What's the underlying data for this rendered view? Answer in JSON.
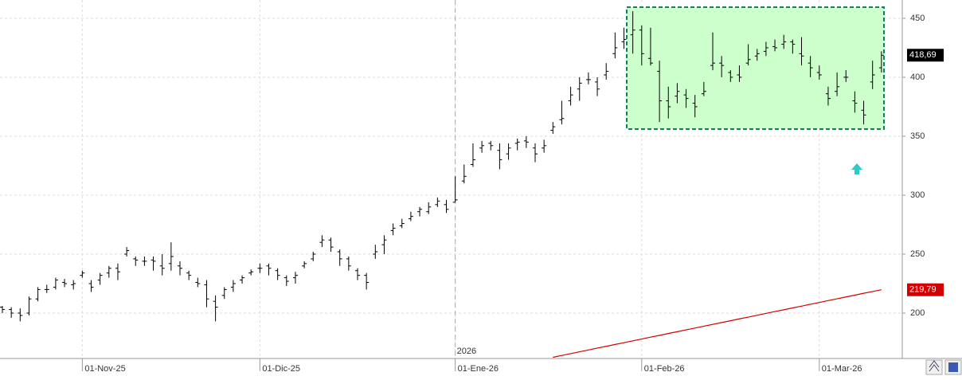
{
  "chart_data": {
    "type": "ohlc",
    "categories": [
      null,
      null,
      null,
      null,
      null,
      null,
      null,
      null,
      null,
      "01-Nov-25",
      null,
      null,
      null,
      null,
      null,
      null,
      null,
      null,
      null,
      null,
      null,
      null,
      null,
      null,
      null,
      null,
      null,
      null,
      null,
      "01-Dic-25",
      null,
      null,
      null,
      null,
      null,
      null,
      null,
      null,
      null,
      null,
      null,
      null,
      null,
      null,
      null,
      null,
      null,
      null,
      null,
      null,
      null,
      "01-Ene-26",
      null,
      null,
      null,
      null,
      null,
      null,
      null,
      null,
      null,
      null,
      null,
      null,
      null,
      null,
      null,
      null,
      null,
      null,
      null,
      null,
      "01-Feb-26",
      null,
      null,
      null,
      null,
      null,
      null,
      null,
      null,
      null,
      null,
      null,
      null,
      null,
      null,
      null,
      null,
      null,
      null,
      null,
      "01-Mar-26",
      null,
      null,
      null,
      null,
      null,
      null,
      null
    ],
    "open": [
      205,
      203,
      200,
      200,
      212,
      220,
      222,
      226,
      224,
      232,
      225,
      228,
      234,
      238,
      250,
      246,
      244,
      245,
      240,
      242,
      240,
      234,
      226,
      224,
      210,
      215,
      222,
      228,
      234,
      238,
      240,
      236,
      230,
      230,
      240,
      246,
      260,
      262,
      252,
      246,
      236,
      232,
      250,
      258,
      270,
      274,
      280,
      286,
      286,
      292,
      292,
      294,
      312,
      326,
      340,
      344,
      338,
      335,
      344,
      346,
      340,
      340,
      355,
      364,
      380,
      390,
      398,
      396,
      402,
      420,
      430,
      436,
      440,
      416,
      405,
      380,
      384,
      385,
      378,
      386,
      410,
      412,
      404,
      402,
      412,
      418,
      422,
      426,
      428,
      430,
      420,
      412,
      404,
      386,
      388,
      400,
      380,
      372,
      396,
      408
    ],
    "high": [
      206,
      205,
      204,
      214,
      222,
      224,
      230,
      229,
      228,
      236,
      228,
      234,
      240,
      242,
      256,
      248,
      248,
      248,
      250,
      260,
      244,
      236,
      230,
      228,
      215,
      222,
      228,
      232,
      237,
      242,
      242,
      238,
      232,
      235,
      244,
      252,
      266,
      264,
      254,
      248,
      238,
      234,
      258,
      266,
      276,
      280,
      286,
      290,
      294,
      298,
      296,
      316,
      326,
      344,
      346,
      346,
      344,
      344,
      348,
      350,
      344,
      347,
      362,
      380,
      392,
      400,
      404,
      400,
      412,
      438,
      442,
      456,
      444,
      442,
      414,
      392,
      395,
      390,
      385,
      396,
      438,
      418,
      406,
      410,
      428,
      424,
      430,
      432,
      436,
      432,
      434,
      418,
      410,
      392,
      404,
      406,
      388,
      380,
      414,
      422
    ],
    "low": [
      200,
      196,
      193,
      198,
      210,
      217,
      220,
      222,
      220,
      230,
      218,
      224,
      230,
      228,
      248,
      240,
      240,
      236,
      232,
      236,
      232,
      228,
      222,
      205,
      193,
      212,
      218,
      225,
      232,
      234,
      232,
      228,
      223,
      225,
      238,
      244,
      256,
      252,
      240,
      236,
      228,
      220,
      246,
      250,
      266,
      272,
      278,
      282,
      284,
      290,
      285,
      294,
      310,
      324,
      336,
      338,
      322,
      330,
      338,
      340,
      328,
      336,
      352,
      360,
      376,
      380,
      394,
      384,
      398,
      416,
      424,
      420,
      410,
      410,
      362,
      365,
      378,
      374,
      366,
      384,
      406,
      400,
      396,
      396,
      410,
      414,
      418,
      422,
      424,
      420,
      410,
      400,
      398,
      376,
      384,
      396,
      370,
      360,
      390,
      404
    ],
    "close": [
      203,
      200,
      198,
      212,
      220,
      220,
      228,
      225,
      225,
      234,
      222,
      232,
      238,
      235,
      253,
      245,
      244,
      244,
      238,
      248,
      238,
      232,
      225,
      212,
      205,
      220,
      225,
      230,
      235,
      238,
      238,
      232,
      227,
      232,
      242,
      250,
      262,
      256,
      246,
      240,
      232,
      226,
      252,
      262,
      272,
      276,
      282,
      288,
      290,
      295,
      288,
      296,
      316,
      330,
      342,
      342,
      330,
      340,
      345,
      345,
      335,
      342,
      358,
      365,
      385,
      395,
      398,
      390,
      405,
      425,
      432,
      440,
      420,
      412,
      380,
      375,
      388,
      382,
      375,
      388,
      412,
      410,
      400,
      400,
      415,
      420,
      425,
      425,
      430,
      428,
      418,
      408,
      402,
      382,
      392,
      400,
      378,
      368,
      402,
      418.69
    ],
    "close_label": "418,69",
    "color": "#000000",
    "overlays": [
      {
        "type": "line",
        "color": "#d40000",
        "last_label": "219,79",
        "values": [
          null,
          null,
          null,
          null,
          null,
          null,
          null,
          null,
          null,
          null,
          null,
          null,
          null,
          null,
          null,
          null,
          null,
          null,
          null,
          null,
          null,
          null,
          null,
          null,
          null,
          null,
          null,
          null,
          null,
          null,
          null,
          null,
          null,
          null,
          null,
          null,
          null,
          null,
          null,
          null,
          null,
          null,
          null,
          null,
          null,
          null,
          null,
          null,
          null,
          null,
          null,
          null,
          null,
          null,
          null,
          null,
          null,
          null,
          null,
          null,
          null,
          null,
          162.5,
          164.1,
          165.6,
          167.2,
          168.7,
          170.3,
          171.8,
          173.4,
          174.9,
          176.5,
          178,
          179.6,
          181.1,
          182.7,
          184.2,
          185.8,
          187.3,
          188.9,
          190.4,
          192,
          193.5,
          195.1,
          196.6,
          198.2,
          199.7,
          201.3,
          202.8,
          204.4,
          205.9,
          207.5,
          209,
          210.6,
          212.1,
          213.7,
          215.2,
          216.8,
          218.3,
          219.79
        ]
      }
    ],
    "annotations": [
      {
        "text": "2026",
        "at": "01-Ene-26"
      }
    ],
    "ylim": [
      161.5,
      465.5
    ],
    "yticks": [
      200,
      250,
      300,
      350,
      400,
      450
    ],
    "grid": true
  }
}
